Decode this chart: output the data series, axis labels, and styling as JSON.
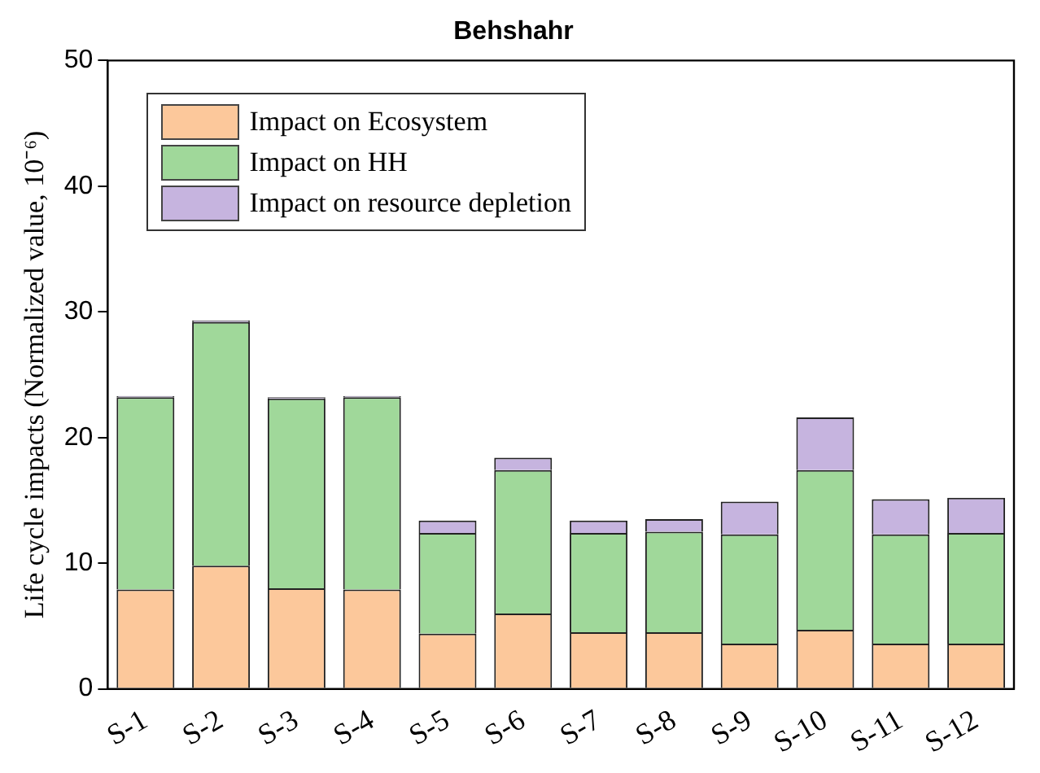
{
  "chart_data": {
    "type": "bar",
    "title": "Behshahr",
    "ylabel": "Life cycle impacts (Normalized value, 10⁻⁶)",
    "categories": [
      "S-1",
      "S-2",
      "S-3",
      "S-4",
      "S-5",
      "S-6",
      "S-7",
      "S-8",
      "S-9",
      "S-10",
      "S-11",
      "S-12"
    ],
    "stacked": true,
    "series": [
      {
        "name": "Impact on Ecosystem",
        "color": "#fcc89b",
        "values": [
          7.9,
          9.8,
          8.0,
          7.9,
          4.4,
          6.0,
          4.5,
          4.5,
          3.6,
          4.7,
          3.6,
          3.6
        ]
      },
      {
        "name": "Impact on HH",
        "color": "#a0d89a",
        "values": [
          15.3,
          19.4,
          15.1,
          15.3,
          8.0,
          11.4,
          7.9,
          8.0,
          8.7,
          12.7,
          8.7,
          8.8
        ]
      },
      {
        "name": "Impact on resource depletion",
        "color": "#c6b4df",
        "values": [
          0.1,
          0.1,
          0.1,
          0.1,
          1.0,
          1.0,
          1.0,
          1.0,
          2.6,
          4.2,
          2.8,
          2.8
        ]
      }
    ],
    "ylim": [
      0,
      50
    ],
    "yticks": [
      0,
      10,
      20,
      30,
      40,
      50
    ],
    "grid": false,
    "legend": "top left"
  }
}
